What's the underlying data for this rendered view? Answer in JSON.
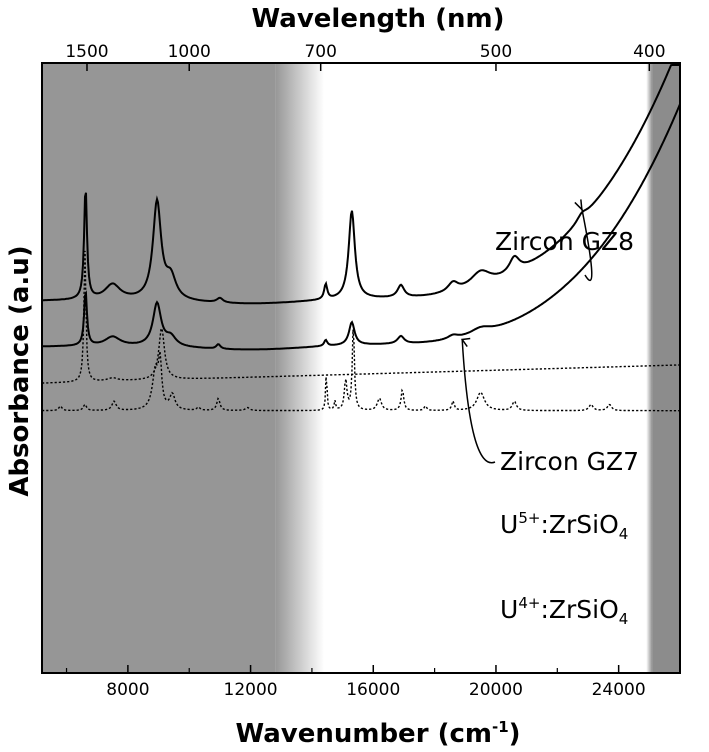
{
  "chart_data": {
    "type": "line",
    "title": "",
    "xlabel": "Wavenumber",
    "xlabel_unit_base": "cm",
    "xlabel_unit_exponent": "-1",
    "x2label": "Wavelength (nm)",
    "ylabel": "Absorbance (a.u)",
    "xlim": [
      5200,
      26000
    ],
    "x_ticks": [
      8000,
      12000,
      16000,
      20000,
      24000
    ],
    "x_tick_labels": [
      "8000",
      "12000",
      "16000",
      "20000",
      "24000"
    ],
    "top_ticks_nm": [
      1500,
      1000,
      700,
      500,
      400
    ],
    "top_tick_labels": [
      "1500",
      "1000",
      "700",
      "500",
      "400"
    ],
    "grid": false,
    "shaded_regions": [
      {
        "from": 5200,
        "to": 12800,
        "meaning": "gray",
        "fade_to": 14400,
        "color": "#969696"
      },
      {
        "from": 25100,
        "to": 26000,
        "meaning": "gray",
        "fade_from": 24900,
        "color": "#8c8c8c"
      }
    ],
    "series": [
      {
        "name": "Zircon GZ8",
        "style": "solid",
        "baseline": 0.22,
        "rise": 0.83,
        "peaks": [
          [
            6620,
            0.37,
            55
          ],
          [
            7500,
            0.05,
            300
          ],
          [
            8950,
            0.32,
            160
          ],
          [
            9400,
            0.07,
            200
          ],
          [
            11000,
            0.015,
            120
          ],
          [
            14450,
            0.05,
            60
          ],
          [
            15300,
            0.29,
            120
          ],
          [
            16900,
            0.04,
            130
          ],
          [
            18600,
            0.03,
            200
          ],
          [
            19500,
            0.05,
            400
          ],
          [
            20600,
            0.05,
            200
          ],
          [
            22800,
            0.02,
            200
          ]
        ]
      },
      {
        "name": "Zircon GZ7",
        "style": "solid",
        "baseline": 0.07,
        "rise": 0.78,
        "peaks": [
          [
            6620,
            0.18,
            55
          ],
          [
            7500,
            0.03,
            300
          ],
          [
            8950,
            0.14,
            160
          ],
          [
            9400,
            0.03,
            200
          ],
          [
            10950,
            0.015,
            80
          ],
          [
            14450,
            0.02,
            60
          ],
          [
            15300,
            0.075,
            110
          ],
          [
            16900,
            0.025,
            130
          ],
          [
            18600,
            0.012,
            200
          ],
          [
            19500,
            0.02,
            400
          ]
        ]
      },
      {
        "name_prefix": "U",
        "name_sup": "5+",
        "name_mid": ":ZrSiO",
        "name_sub": "4",
        "style": "dotted",
        "baseline": -0.05,
        "slope": 0.06,
        "peaks": [
          [
            6600,
            0.43,
            40
          ],
          [
            9100,
            0.17,
            110
          ],
          [
            7500,
            0.01,
            200
          ]
        ]
      },
      {
        "name_prefix": "U",
        "name_sup": "4+",
        "name_mid": ":ZrSiO",
        "name_sub": "4",
        "style": "dotted",
        "baseline": -0.14,
        "slope": 0.0,
        "peaks": [
          [
            5800,
            0.015,
            60
          ],
          [
            6600,
            0.02,
            60
          ],
          [
            7550,
            0.03,
            80
          ],
          [
            8900,
            0.13,
            120
          ],
          [
            9050,
            0.14,
            60
          ],
          [
            9450,
            0.05,
            100
          ],
          [
            10300,
            0.01,
            60
          ],
          [
            10950,
            0.04,
            60
          ],
          [
            11900,
            0.01,
            80
          ],
          [
            14470,
            0.13,
            25
          ],
          [
            14750,
            0.03,
            30
          ],
          [
            15100,
            0.1,
            50
          ],
          [
            15350,
            0.28,
            40
          ],
          [
            16200,
            0.04,
            80
          ],
          [
            16950,
            0.07,
            50
          ],
          [
            17700,
            0.015,
            50
          ],
          [
            18600,
            0.03,
            50
          ],
          [
            19500,
            0.06,
            150
          ],
          [
            20600,
            0.03,
            80
          ],
          [
            23100,
            0.02,
            80
          ],
          [
            23700,
            0.02,
            80
          ]
        ]
      }
    ],
    "annotations": [
      {
        "text": "Zircon GZ8",
        "target_series": 0,
        "arrow_to_x": 22800
      },
      {
        "text": "Zircon GZ7",
        "target_series": 1,
        "arrow_to_x": 18900
      }
    ]
  }
}
